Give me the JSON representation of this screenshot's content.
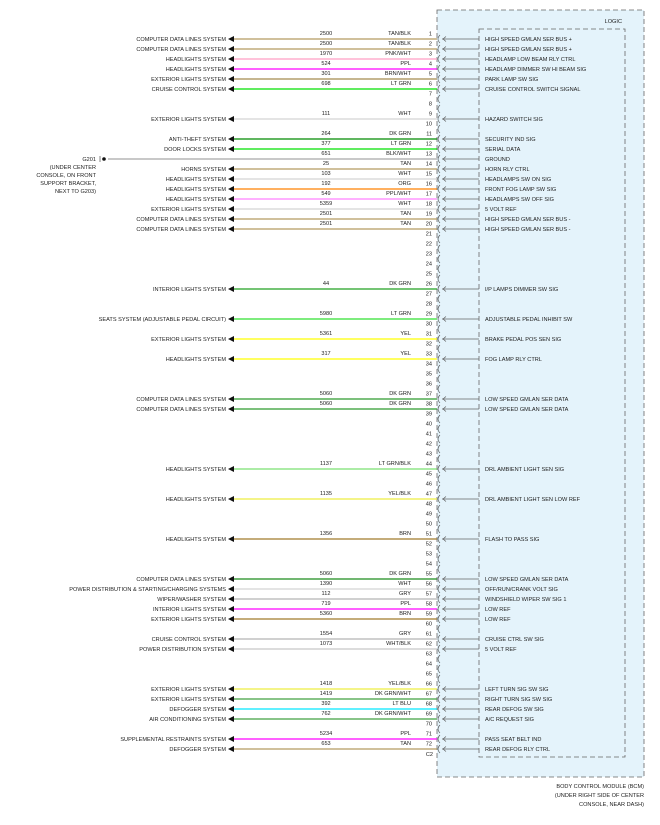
{
  "module": {
    "logic_label": "LOGIC",
    "name_lines": [
      "BODY CONTROL MODULE (BCM)",
      "(UNDER RIGHT SIDE OF CENTER",
      "CONSOLE, NEAR DASH)"
    ],
    "box_fill": "#e4f3fb",
    "end_label": "C2"
  },
  "ground": {
    "name": "G201",
    "location_lines": [
      "(UNDER CENTER",
      "CONSOLE, ON FRONT",
      "SUPPORT BRACKET,",
      "NEXT TO G203)"
    ]
  },
  "pins": [
    {
      "pin": "1",
      "system": "COMPUTER DATA LINES SYSTEM",
      "circuit": "2500",
      "color": "TAN/BLK",
      "hex": "#b39b62",
      "signal": "HIGH SPEED GMLAN SER BUS +"
    },
    {
      "pin": "2",
      "system": "COMPUTER DATA LINES SYSTEM",
      "circuit": "2500",
      "color": "TAN/BLK",
      "hex": "#b39b62",
      "signal": "HIGH SPEED GMLAN SER BUS +"
    },
    {
      "pin": "3",
      "system": "HEADLIGHTS SYSTEM",
      "circuit": "1970",
      "color": "PNK/WHT",
      "hex": "#ff9ec4",
      "signal": "HEADLAMP LOW BEAM RLY CTRL"
    },
    {
      "pin": "4",
      "system": "HEADLIGHTS SYSTEM",
      "circuit": "524",
      "color": "PPL",
      "hex": "#ff00ff",
      "signal": "HEADLAMP DIMMER SW HI BEAM SIG"
    },
    {
      "pin": "5",
      "system": "EXTERIOR LIGHTS SYSTEM",
      "circuit": "301",
      "color": "BRN/WHT",
      "hex": "#a58a4e",
      "signal": "PARK LAMP SW SIG"
    },
    {
      "pin": "6",
      "system": "CRUISE CONTROL SYSTEM",
      "circuit": "698",
      "color": "LT GRN",
      "hex": "#00e000",
      "signal": "CRUISE CONTROL SWITCH SIGNAL"
    },
    {
      "pin": "7"
    },
    {
      "pin": "8"
    },
    {
      "pin": "9",
      "system": "EXTERIOR LIGHTS SYSTEM",
      "circuit": "111",
      "color": "WHT",
      "hex": "#d4d4d4",
      "signal": "HAZARD SWITCH SIG"
    },
    {
      "pin": "10"
    },
    {
      "pin": "11",
      "system": "ANTI-THEFT SYSTEM",
      "circuit": "264",
      "color": "DK GRN",
      "hex": "#008a00",
      "signal": "SECURITY IND SIG"
    },
    {
      "pin": "12",
      "system": "DOOR LOCKS SYSTEM",
      "circuit": "377",
      "color": "LT GRN",
      "hex": "#00e000",
      "signal": "SERIAL DATA"
    },
    {
      "pin": "13",
      "ground": true,
      "circuit": "651",
      "color": "BLK/WHT",
      "hex": "#a8a8a8",
      "signal": "GROUND"
    },
    {
      "pin": "14",
      "system": "HORNS SYSTEM",
      "circuit": "25",
      "color": "TAN",
      "hex": "#b39b62",
      "signal": "HORN RLY CTRL"
    },
    {
      "pin": "15",
      "system": "HEADLIGHTS SYSTEM",
      "circuit": "103",
      "color": "WHT",
      "hex": "#d4d4d4",
      "signal": "HEADLAMPS SW ON SIG"
    },
    {
      "pin": "16",
      "system": "HEADLIGHTS SYSTEM",
      "circuit": "192",
      "color": "ORG",
      "hex": "#ff8000",
      "signal": "FRONT FOG LAMP SW SIG"
    },
    {
      "pin": "17",
      "system": "HEADLIGHTS SYSTEM",
      "circuit": "549",
      "color": "PPL/WHT",
      "hex": "#ff80ff",
      "signal": "HEADLAMPS SW OFF SIG"
    },
    {
      "pin": "18",
      "system": "EXTERIOR LIGHTS SYSTEM",
      "circuit": "5359",
      "color": "WHT",
      "hex": "#d4d4d4",
      "signal": "5 VOLT REF"
    },
    {
      "pin": "19",
      "system": "COMPUTER DATA LINES SYSTEM",
      "circuit": "2501",
      "color": "TAN",
      "hex": "#b39b62",
      "signal": "HIGH SPEED GMLAN SER BUS -"
    },
    {
      "pin": "20",
      "system": "COMPUTER DATA LINES SYSTEM",
      "circuit": "2501",
      "color": "TAN",
      "hex": "#b39b62",
      "signal": "HIGH SPEED GMLAN SER BUS -"
    },
    {
      "pin": "21"
    },
    {
      "pin": "22"
    },
    {
      "pin": "23"
    },
    {
      "pin": "24"
    },
    {
      "pin": "25"
    },
    {
      "pin": "26",
      "system": "INTERIOR LIGHTS SYSTEM",
      "circuit": "44",
      "color": "DK GRN",
      "hex": "#22a022",
      "signal": "I/P LAMPS DIMMER SW SIG"
    },
    {
      "pin": "27"
    },
    {
      "pin": "28"
    },
    {
      "pin": "29",
      "system": "SEATS SYSTEM (ADJUSTABLE PEDAL CIRCUIT)",
      "circuit": "5980",
      "color": "LT GRN",
      "hex": "#30e030",
      "signal": "ADJUSTABLE PEDAL INHIBIT SW"
    },
    {
      "pin": "30"
    },
    {
      "pin": "31",
      "system": "EXTERIOR LIGHTS SYSTEM",
      "circuit": "5361",
      "color": "YEL",
      "hex": "#ffff00",
      "signal": "BRAKE PEDAL POS SEN SIG"
    },
    {
      "pin": "32"
    },
    {
      "pin": "33",
      "system": "HEADLIGHTS SYSTEM",
      "circuit": "317",
      "color": "YEL",
      "hex": "#ffff00",
      "signal": "FOG LAMP RLY CTRL"
    },
    {
      "pin": "34"
    },
    {
      "pin": "35"
    },
    {
      "pin": "36"
    },
    {
      "pin": "37",
      "system": "COMPUTER DATA LINES SYSTEM",
      "circuit": "5060",
      "color": "DK GRN",
      "hex": "#2e9a2e",
      "signal": "LOW SPEED GMLAN SER DATA"
    },
    {
      "pin": "38",
      "system": "COMPUTER DATA LINES SYSTEM",
      "circuit": "5060",
      "color": "DK GRN",
      "hex": "#2e9a2e",
      "signal": "LOW SPEED GMLAN SER DATA"
    },
    {
      "pin": "39"
    },
    {
      "pin": "40"
    },
    {
      "pin": "41"
    },
    {
      "pin": "42"
    },
    {
      "pin": "43"
    },
    {
      "pin": "44",
      "system": "HEADLIGHTS SYSTEM",
      "circuit": "1137",
      "color": "LT GRN/BLK",
      "hex": "#7ae070",
      "signal": "DRL AMBIENT LIGHT SEN SIG"
    },
    {
      "pin": "45"
    },
    {
      "pin": "46"
    },
    {
      "pin": "47",
      "system": "HEADLIGHTS SYSTEM",
      "circuit": "1135",
      "color": "YEL/BLK",
      "hex": "#eeee40",
      "signal": "DRL AMBIENT LIGHT SEN LOW REF"
    },
    {
      "pin": "48"
    },
    {
      "pin": "49"
    },
    {
      "pin": "50"
    },
    {
      "pin": "51",
      "system": "HEADLIGHTS SYSTEM",
      "circuit": "1356",
      "color": "BRN",
      "hex": "#a07a2a",
      "signal": "FLASH TO PASS SIG"
    },
    {
      "pin": "52"
    },
    {
      "pin": "53"
    },
    {
      "pin": "54"
    },
    {
      "pin": "55",
      "system": "COMPUTER DATA LINES SYSTEM",
      "circuit": "5060",
      "color": "DK GRN",
      "hex": "#1c8c1c",
      "signal": "LOW SPEED GMLAN SER DATA"
    },
    {
      "pin": "56",
      "system": "POWER DISTRIBUTION & STARTING/CHARGING SYSTEMS",
      "circuit": "1390",
      "color": "WHT",
      "hex": "#d4d4d4",
      "signal": "OFF/RUN/CRANK VOLT SIG"
    },
    {
      "pin": "57",
      "system": "WIPER/WASHER SYSTEM",
      "circuit": "112",
      "color": "GRY",
      "hex": "#b4b4b4",
      "signal": "WINDSHIELD WIPER SW SIG 1"
    },
    {
      "pin": "58",
      "system": "INTERIOR LIGHTS SYSTEM",
      "circuit": "719",
      "color": "PPL",
      "hex": "#ff00ff",
      "signal": "LOW REF"
    },
    {
      "pin": "59",
      "system": "EXTERIOR LIGHTS SYSTEM",
      "circuit": "5360",
      "color": "BRN",
      "hex": "#a07a2a",
      "signal": "LOW REF"
    },
    {
      "pin": "60"
    },
    {
      "pin": "61",
      "system": "CRUISE CONTROL SYSTEM",
      "circuit": "1554",
      "color": "GRY",
      "hex": "#b4b4b4",
      "signal": "CRUISE CTRL SW SIG"
    },
    {
      "pin": "62",
      "system": "POWER DISTRIBUTION SYSTEM",
      "circuit": "1073",
      "color": "WHT/BLK",
      "hex": "#c8c8c8",
      "signal": "5 VOLT REF"
    },
    {
      "pin": "63"
    },
    {
      "pin": "64"
    },
    {
      "pin": "65"
    },
    {
      "pin": "66",
      "system": "EXTERIOR LIGHTS SYSTEM",
      "circuit": "1418",
      "color": "YEL/BLK",
      "hex": "#eeee40",
      "signal": "LEFT TURN SIG SW SIG"
    },
    {
      "pin": "67",
      "system": "EXTERIOR LIGHTS SYSTEM",
      "circuit": "1419",
      "color": "DK GRN/WHT",
      "hex": "#40a040",
      "signal": "RIGHT TURN SIG SW SIG"
    },
    {
      "pin": "68",
      "system": "DEFOGGER SYSTEM",
      "circuit": "392",
      "color": "LT BLU",
      "hex": "#00e8ff",
      "signal": "REAR DEFOG SW SIG"
    },
    {
      "pin": "69",
      "system": "AIR CONDITIONING SYSTEM",
      "circuit": "762",
      "color": "DK GRN/WHT",
      "hex": "#40a040",
      "signal": "A/C REQUEST SIG"
    },
    {
      "pin": "70"
    },
    {
      "pin": "71",
      "system": "SUPPLEMENTAL RESTRAINTS SYSTEM",
      "circuit": "5234",
      "color": "PPL",
      "hex": "#ff00ff",
      "signal": "PASS SEAT BELT IND"
    },
    {
      "pin": "72",
      "system": "DEFOGGER SYSTEM",
      "circuit": "653",
      "color": "TAN",
      "hex": "#b39b62",
      "signal": "REAR DEFOG RLY CTRL"
    }
  ]
}
